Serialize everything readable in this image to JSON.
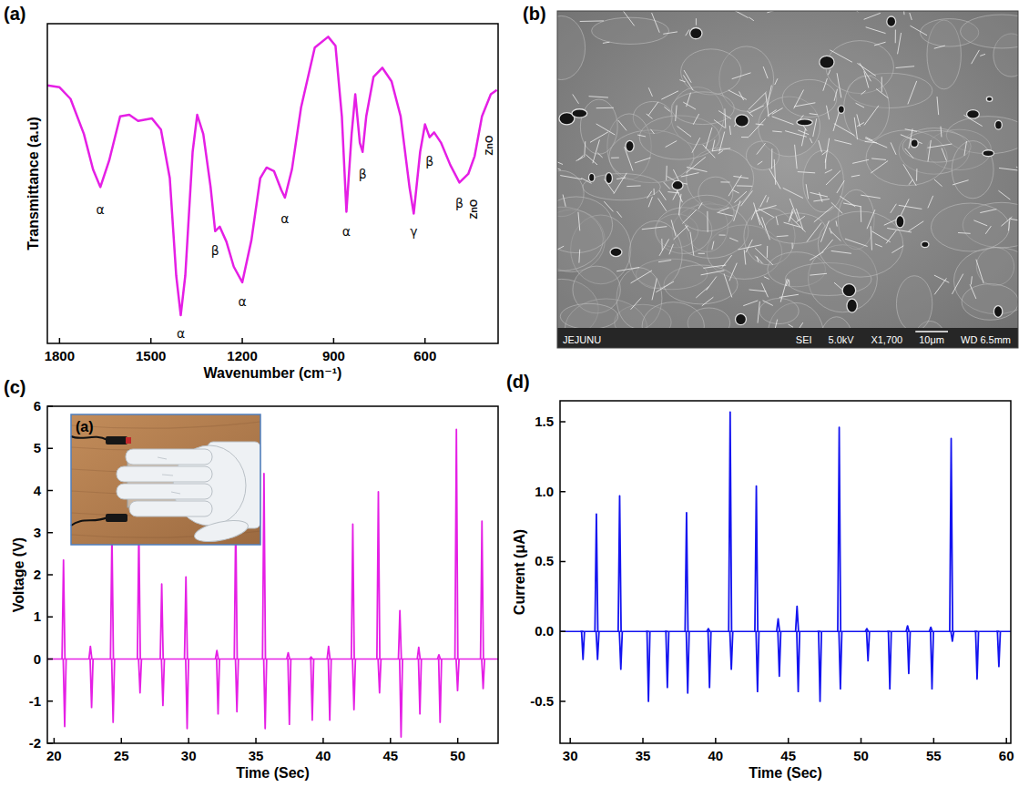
{
  "chart_data": [
    {
      "type": "line",
      "title": "(a)",
      "x_label": "Wavenumber (cm⁻¹)",
      "y_label": "Transmittance (a.u)",
      "x": [
        1840,
        1800,
        1764,
        1720,
        1690,
        1666,
        1637,
        1601,
        1571,
        1542,
        1497,
        1467,
        1438,
        1417,
        1402,
        1387,
        1363,
        1348,
        1328,
        1304,
        1289,
        1274,
        1252,
        1228,
        1200,
        1170,
        1141,
        1120,
        1096,
        1072,
        1060,
        1037,
        1007,
        962,
        918,
        894,
        873,
        858,
        841,
        829,
        814,
        805,
        793,
        769,
        740,
        710,
        680,
        651,
        637,
        616,
        600,
        585,
        570,
        547,
        517,
        487,
        458,
        437,
        413,
        384,
        364
      ],
      "values": [
        80.7,
        80.1,
        76.5,
        65.5,
        54.4,
        48.9,
        57.2,
        71.0,
        71.5,
        69.6,
        70.4,
        66.9,
        51.7,
        21.3,
        8.8,
        21.3,
        59.9,
        71.5,
        65.5,
        48.9,
        35.1,
        36.5,
        31.8,
        24.0,
        19.1,
        32.3,
        51.7,
        55.0,
        53.9,
        48.0,
        45.6,
        54.4,
        73.8,
        92.5,
        95.9,
        93.1,
        71.0,
        41.2,
        65.5,
        77.9,
        62.7,
        59.9,
        71.0,
        83.4,
        86.2,
        82.0,
        71.0,
        48.9,
        40.6,
        59.9,
        68.5,
        64.5,
        66.0,
        62.7,
        55.8,
        50.3,
        53.0,
        58.6,
        71.0,
        77.9,
        79.3
      ],
      "color": "#e51fe5",
      "xlim": [
        1840,
        360
      ],
      "xticks": [
        1800,
        1500,
        1200,
        900,
        600
      ],
      "ylim": [
        0,
        100
      ],
      "tick_labels": "x",
      "annotations": [
        {
          "text": "α",
          "x": 1666,
          "y": 42
        },
        {
          "text": "α",
          "x": 1402,
          "y": 3
        },
        {
          "text": "β",
          "x": 1289,
          "y": 29
        },
        {
          "text": "α",
          "x": 1200,
          "y": 13
        },
        {
          "text": "α",
          "x": 1060,
          "y": 39
        },
        {
          "text": "α",
          "x": 858,
          "y": 35
        },
        {
          "text": "β",
          "x": 805,
          "y": 53
        },
        {
          "text": "γ",
          "x": 637,
          "y": 35
        },
        {
          "text": "β",
          "x": 585,
          "y": 57
        },
        {
          "text": "β",
          "x": 487,
          "y": 44
        },
        {
          "text": "ZnO",
          "x": 440,
          "y": 42
        },
        {
          "text": "ZnO",
          "x": 390,
          "y": 62
        }
      ]
    },
    {
      "type": "line",
      "title": "(c)",
      "x_label": "Time (Sec)",
      "y_label": "Voltage (V)",
      "x": [
        20.7,
        22.7,
        24.3,
        26.3,
        28.0,
        29.8,
        32.1,
        33.5,
        35.6,
        37.4,
        39.1,
        40.4,
        42.2,
        44.1,
        45.7,
        47.1,
        48.6,
        49.9,
        51.8
      ],
      "series": [
        {
          "values": [
            2.35,
            0.3,
            3.0,
            3.1,
            1.78,
            1.95,
            0.2,
            3.3,
            4.4,
            0.15,
            0.05,
            0.3,
            3.2,
            3.97,
            1.15,
            0.28,
            0.1,
            5.45,
            3.27
          ]
        },
        {
          "values": [
            -1.6,
            -1.15,
            -1.5,
            -0.8,
            -1.1,
            -1.65,
            -1.3,
            -1.25,
            -1.65,
            -1.55,
            -1.45,
            -1.45,
            -1.2,
            -0.8,
            -1.85,
            -1.3,
            -1.5,
            -0.75,
            -0.7
          ]
        }
      ],
      "color": "#e51fe5",
      "xlim": [
        19.5,
        53
      ],
      "xticks": [
        20,
        25,
        30,
        35,
        40,
        45,
        50
      ],
      "ylim": [
        -2,
        6
      ],
      "yticks": [
        -2,
        -1,
        0,
        1,
        2,
        3,
        4,
        5,
        6
      ],
      "inset": {
        "label": "(a)"
      }
    },
    {
      "type": "line",
      "title": "(d)",
      "x_label": "Time (Sec)",
      "y_label": "Current (μA)",
      "x": [
        30.8,
        31.8,
        33.4,
        35.3,
        36.6,
        38.0,
        39.5,
        41.0,
        42.8,
        44.3,
        45.6,
        47.1,
        48.5,
        50.4,
        51.9,
        53.2,
        54.8,
        56.2,
        57.9,
        59.4
      ],
      "series": [
        {
          "values": [
            0,
            0.84,
            0.97,
            0,
            0,
            0.85,
            0.02,
            1.57,
            1.04,
            0.09,
            0.18,
            0,
            1.46,
            0.02,
            0,
            0.04,
            0.03,
            1.38,
            0,
            0
          ]
        },
        {
          "values": [
            -0.2,
            -0.2,
            -0.27,
            -0.5,
            -0.4,
            -0.44,
            -0.4,
            -0.27,
            -0.43,
            -0.32,
            -0.43,
            -0.5,
            -0.41,
            -0.21,
            -0.41,
            -0.3,
            -0.41,
            -0.07,
            -0.34,
            -0.25
          ]
        }
      ],
      "color": "#1414f0",
      "xlim": [
        29.3,
        60.3
      ],
      "xticks": [
        30,
        35,
        40,
        45,
        50,
        55,
        60
      ],
      "ylim": [
        -0.8,
        1.65
      ],
      "yticks": [
        -0.5,
        {
          "value": 0,
          "label": "0.0"
        },
        0.5,
        {
          "value": 1,
          "label": "1.0"
        },
        1.5
      ]
    }
  ],
  "image": {
    "title": "(b)",
    "info": [
      "JEJUNU",
      "SEI",
      "5.0kV",
      "X1,700",
      "10μm",
      "WD 6.5mm"
    ]
  }
}
